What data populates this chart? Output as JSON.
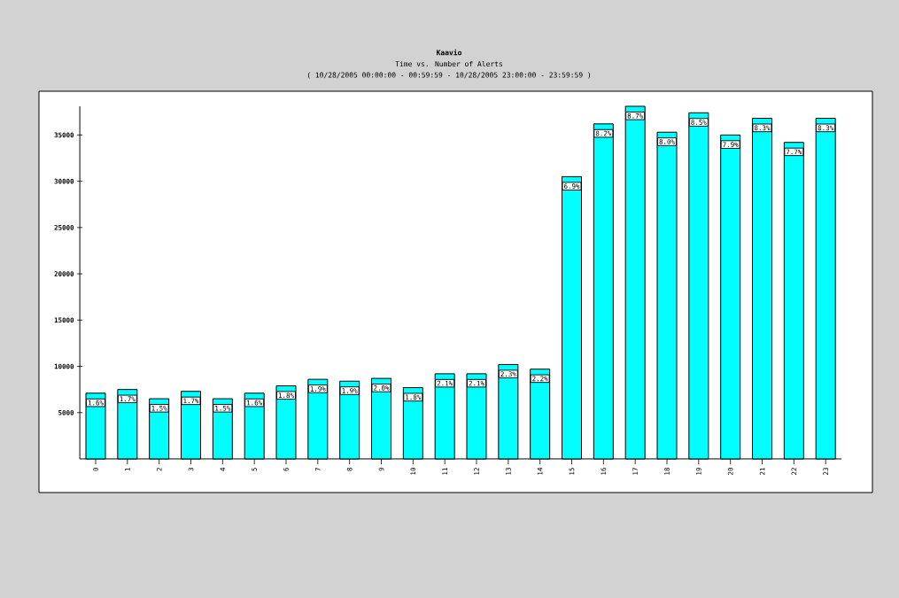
{
  "chart_data": {
    "type": "bar",
    "title": "Kaavio",
    "subtitle": "Time vs. Number of Alerts",
    "annotations": [
      "( 10/28/2005 00:00:00 - 00:59:59 - 10/28/2005 23:00:00 - 23:59:59 )",
      {
        "text": "1.6%",
        "x": "0",
        "y": 7100
      },
      {
        "text": "1.7%",
        "x": "1",
        "y": 7500
      },
      {
        "text": "1.5%",
        "x": "2",
        "y": 6500
      },
      {
        "text": "1.7%",
        "x": "3",
        "y": 7300
      },
      {
        "text": "1.5%",
        "x": "4",
        "y": 6500
      },
      {
        "text": "1.6%",
        "x": "5",
        "y": 7100
      },
      {
        "text": "1.8%",
        "x": "6",
        "y": 7900
      },
      {
        "text": "1.9%",
        "x": "7",
        "y": 8600
      },
      {
        "text": "1.9%",
        "x": "8",
        "y": 8400
      },
      {
        "text": "2.0%",
        "x": "9",
        "y": 8700
      },
      {
        "text": "1.8%",
        "x": "10",
        "y": 7700
      },
      {
        "text": "2.1%",
        "x": "11",
        "y": 9200
      },
      {
        "text": "2.1%",
        "x": "12",
        "y": 9200
      },
      {
        "text": "2.3%",
        "x": "13",
        "y": 10200
      },
      {
        "text": "2.2%",
        "x": "14",
        "y": 9700
      },
      {
        "text": "6.9%",
        "x": "15",
        "y": 30500
      },
      {
        "text": "8.2%",
        "x": "16",
        "y": 36200
      },
      {
        "text": "8.7%",
        "x": "17",
        "y": 38100
      },
      {
        "text": "8.0%",
        "x": "18",
        "y": 35300
      },
      {
        "text": "8.5%",
        "x": "19",
        "y": 37400
      },
      {
        "text": "7.9%",
        "x": "20",
        "y": 35000
      },
      {
        "text": "8.3%",
        "x": "21",
        "y": 36800
      },
      {
        "text": "7.7%",
        "x": "22",
        "y": 34200
      },
      {
        "text": "8.3%",
        "x": "23",
        "y": 36800
      }
    ],
    "categories": [
      "0",
      "1",
      "2",
      "3",
      "4",
      "5",
      "6",
      "7",
      "8",
      "9",
      "10",
      "11",
      "12",
      "13",
      "14",
      "15",
      "16",
      "17",
      "18",
      "19",
      "20",
      "21",
      "22",
      "23"
    ],
    "values": [
      7100,
      7500,
      6500,
      7300,
      6500,
      7100,
      7900,
      8600,
      8400,
      8700,
      7700,
      9200,
      9200,
      10200,
      9700,
      30500,
      36200,
      38100,
      35300,
      37400,
      35000,
      36800,
      34200,
      36800
    ],
    "color": "#00ffff",
    "ylim": [
      0,
      38100
    ],
    "yticks": [
      5000,
      10000,
      15000,
      20000,
      25000,
      30000,
      35000
    ]
  }
}
